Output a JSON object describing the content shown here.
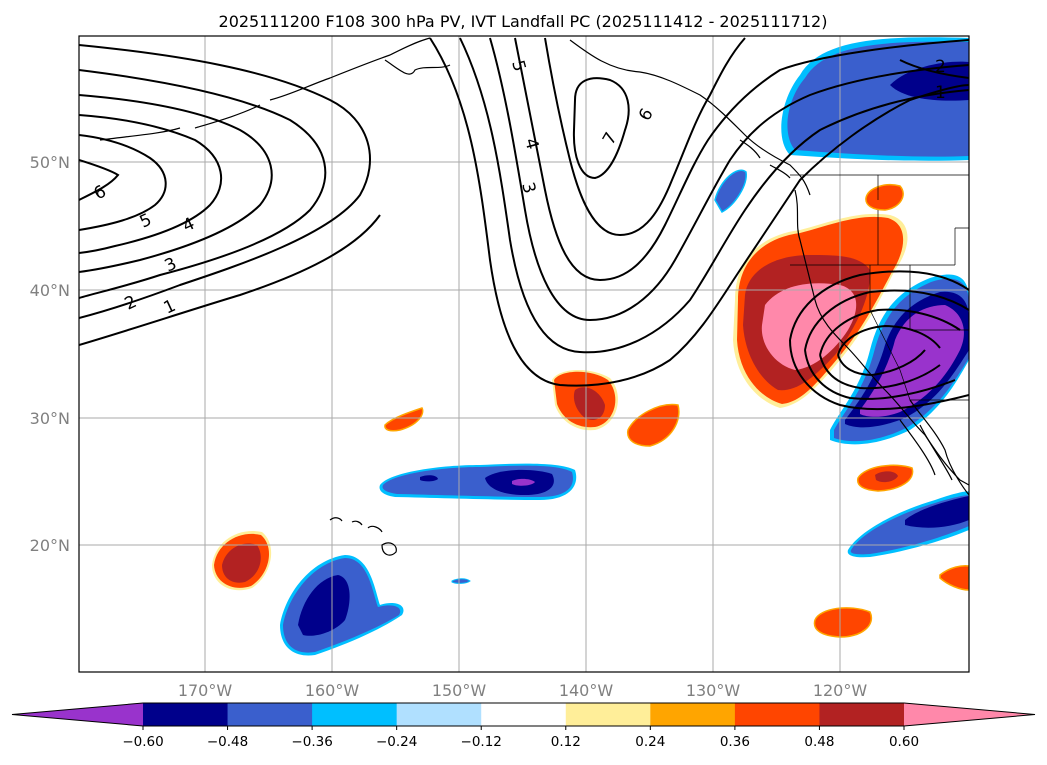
{
  "title": "2025111200 F108 300 hPa PV, IVT Landfall PC (2025111412 - 2025111712)",
  "lat_labels": [
    "50°N",
    "40°N",
    "30°N",
    "20°N"
  ],
  "lon_labels": [
    "170°W",
    "160°W",
    "150°W",
    "140°W",
    "130°W",
    "120°W"
  ],
  "colorbar": {
    "levels": [
      "−0.60",
      "−0.48",
      "−0.36",
      "−0.24",
      "−0.12",
      "0.12",
      "0.24",
      "0.36",
      "0.48",
      "0.60"
    ],
    "colors": [
      "#9933cc",
      "#00008b",
      "#3a5fcd",
      "#00bfff",
      "#b0e0ff",
      "#ffffff",
      "#ffee99",
      "#ffa500",
      "#ff4500",
      "#b22222",
      "#ff88aa"
    ]
  },
  "contour_labels": [
    "6",
    "5",
    "4",
    "3",
    "2",
    "1",
    "5",
    "4",
    "3",
    "7",
    "6",
    "2",
    "1"
  ]
}
